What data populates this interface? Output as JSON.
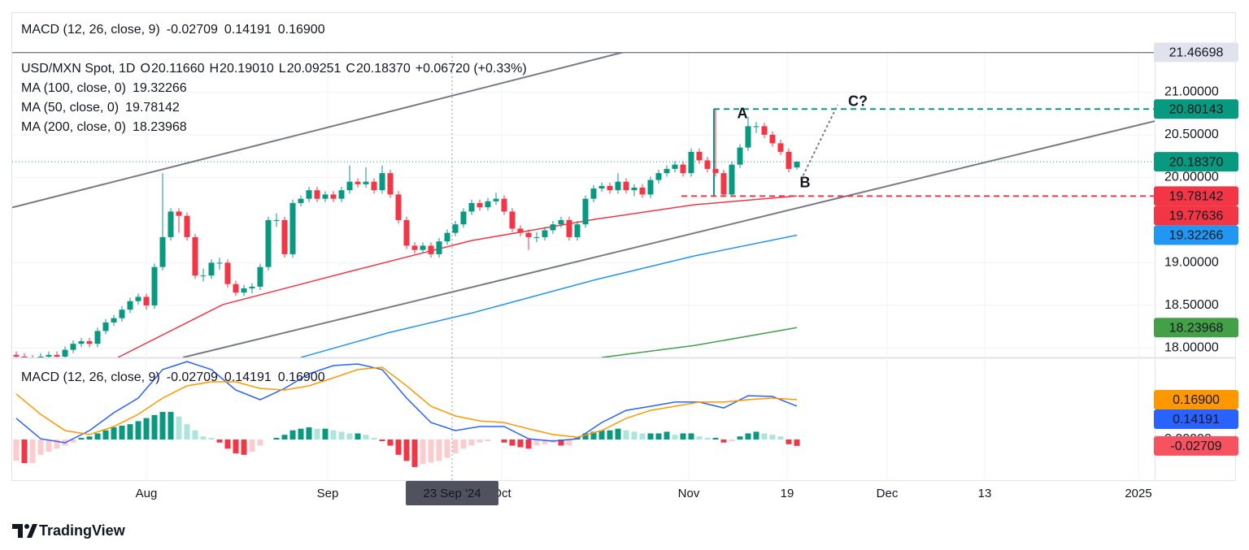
{
  "chart_data": [
    {
      "type": "candlestick",
      "title": "USD/MXN Spot, 1D",
      "ohlc_labels": [
        {
          "key": "O",
          "value": "20.11660"
        },
        {
          "key": "H",
          "value": "20.19010"
        },
        {
          "key": "L",
          "value": "20.09251"
        },
        {
          "key": "C",
          "value": "20.18370"
        }
      ],
      "change_label": "+0.06720 (+0.33%)",
      "xlim": [
        -0.5,
        140
      ],
      "xticks": [
        {
          "value": 16,
          "label": "Aug"
        },
        {
          "value": 38.3,
          "label": "Sep"
        },
        {
          "value": 59.7,
          "label": "Oct"
        },
        {
          "value": 82.7,
          "label": "Nov"
        },
        {
          "value": 94.8,
          "label": "19"
        },
        {
          "value": 107.1,
          "label": "Dec"
        },
        {
          "value": 119.1,
          "label": "13"
        },
        {
          "value": 138,
          "label": "2025"
        }
      ],
      "ylim": [
        17.89,
        21.47
      ],
      "yticks": [
        {
          "value": 18,
          "label": "18.00000"
        },
        {
          "value": 18.5,
          "label": "18.50000"
        },
        {
          "value": 19,
          "label": "19.00000"
        },
        {
          "value": 20,
          "label": "20.00000"
        },
        {
          "value": 20.5,
          "label": "20.50000"
        },
        {
          "value": 21,
          "label": "21.00000"
        }
      ],
      "grid": true,
      "up_color": "#089981",
      "down_color": "#f23645",
      "ohlc": [
        [
          17.92,
          17.96,
          17.86,
          17.9
        ],
        [
          17.9,
          17.94,
          17.84,
          17.88
        ],
        [
          17.88,
          17.92,
          17.83,
          17.87
        ],
        [
          17.87,
          17.94,
          17.83,
          17.9
        ],
        [
          17.9,
          17.96,
          17.86,
          17.92
        ],
        [
          17.92,
          17.96,
          17.86,
          17.9
        ],
        [
          17.9,
          18.02,
          17.86,
          17.98
        ],
        [
          17.98,
          18.09,
          17.94,
          18.05
        ],
        [
          18.05,
          18.12,
          18.01,
          18.08
        ],
        [
          18.08,
          18.12,
          18.01,
          18.05
        ],
        [
          18.05,
          18.24,
          18.01,
          18.2
        ],
        [
          18.2,
          18.34,
          18.16,
          18.3
        ],
        [
          18.3,
          18.39,
          18.26,
          18.35
        ],
        [
          18.35,
          18.49,
          18.31,
          18.45
        ],
        [
          18.45,
          18.59,
          18.41,
          18.55
        ],
        [
          18.55,
          18.64,
          18.51,
          18.6
        ],
        [
          18.6,
          18.64,
          18.45,
          18.5
        ],
        [
          18.5,
          18.99,
          18.46,
          18.95
        ],
        [
          18.95,
          20.05,
          18.91,
          19.3
        ],
        [
          19.3,
          19.64,
          19.26,
          19.6
        ],
        [
          19.6,
          19.64,
          19.35,
          19.55
        ],
        [
          19.55,
          19.59,
          19.26,
          19.3
        ],
        [
          19.3,
          19.34,
          18.81,
          18.85
        ],
        [
          18.85,
          18.93,
          18.78,
          18.85
        ],
        [
          18.85,
          19.04,
          18.81,
          19.0
        ],
        [
          19.0,
          19.06,
          18.92,
          19.0
        ],
        [
          19.0,
          19.04,
          18.71,
          18.75
        ],
        [
          18.75,
          18.79,
          18.61,
          18.65
        ],
        [
          18.65,
          18.74,
          18.61,
          18.7
        ],
        [
          18.7,
          18.76,
          18.64,
          18.72
        ],
        [
          18.72,
          18.99,
          18.68,
          18.95
        ],
        [
          18.95,
          19.54,
          18.91,
          19.5
        ],
        [
          19.5,
          19.58,
          19.42,
          19.5
        ],
        [
          19.5,
          19.54,
          19.06,
          19.1
        ],
        [
          19.1,
          19.74,
          19.06,
          19.7
        ],
        [
          19.7,
          19.79,
          19.66,
          19.75
        ],
        [
          19.75,
          19.89,
          19.71,
          19.85
        ],
        [
          19.85,
          19.89,
          19.71,
          19.75
        ],
        [
          19.75,
          19.84,
          19.71,
          19.8
        ],
        [
          19.8,
          19.84,
          19.71,
          19.75
        ],
        [
          19.75,
          19.89,
          19.71,
          19.85
        ],
        [
          19.85,
          20.14,
          19.81,
          19.95
        ],
        [
          19.95,
          19.99,
          19.88,
          19.92
        ],
        [
          19.92,
          20.12,
          19.88,
          19.95
        ],
        [
          19.95,
          19.99,
          19.81,
          19.85
        ],
        [
          19.85,
          20.14,
          19.81,
          20.05
        ],
        [
          20.05,
          20.09,
          19.76,
          19.8
        ],
        [
          19.8,
          19.84,
          19.46,
          19.5
        ],
        [
          19.5,
          19.54,
          19.16,
          19.2
        ],
        [
          19.2,
          19.24,
          19.11,
          19.15
        ],
        [
          19.15,
          19.24,
          19.11,
          19.2
        ],
        [
          19.2,
          19.24,
          19.06,
          19.1
        ],
        [
          19.1,
          19.29,
          19.06,
          19.25
        ],
        [
          19.25,
          19.39,
          19.21,
          19.35
        ],
        [
          19.35,
          19.49,
          19.31,
          19.45
        ],
        [
          19.45,
          19.64,
          19.41,
          19.6
        ],
        [
          19.6,
          19.74,
          19.56,
          19.7
        ],
        [
          19.7,
          19.74,
          19.61,
          19.65
        ],
        [
          19.65,
          19.76,
          19.61,
          19.72
        ],
        [
          19.72,
          19.82,
          19.68,
          19.75
        ],
        [
          19.75,
          19.79,
          19.56,
          19.6
        ],
        [
          19.6,
          19.64,
          19.36,
          19.4
        ],
        [
          19.4,
          19.44,
          19.31,
          19.35
        ],
        [
          19.35,
          19.39,
          19.15,
          19.3
        ],
        [
          19.3,
          19.36,
          19.24,
          19.3
        ],
        [
          19.3,
          19.42,
          19.26,
          19.38
        ],
        [
          19.38,
          19.49,
          19.34,
          19.45
        ],
        [
          19.45,
          19.54,
          19.41,
          19.5
        ],
        [
          19.5,
          19.54,
          19.26,
          19.3
        ],
        [
          19.3,
          19.49,
          19.26,
          19.45
        ],
        [
          19.45,
          19.79,
          19.41,
          19.75
        ],
        [
          19.75,
          19.91,
          19.71,
          19.87
        ],
        [
          19.87,
          19.94,
          19.83,
          19.9
        ],
        [
          19.9,
          19.94,
          19.81,
          19.85
        ],
        [
          19.85,
          20.05,
          19.81,
          19.95
        ],
        [
          19.95,
          19.99,
          19.81,
          19.85
        ],
        [
          19.85,
          19.92,
          19.78,
          19.88
        ],
        [
          19.88,
          19.92,
          19.76,
          19.8
        ],
        [
          19.8,
          20.01,
          19.76,
          19.97
        ],
        [
          19.97,
          20.09,
          19.93,
          20.05
        ],
        [
          20.05,
          20.14,
          20.01,
          20.1
        ],
        [
          20.1,
          20.19,
          20.06,
          20.15
        ],
        [
          20.15,
          20.19,
          20.01,
          20.05
        ],
        [
          20.05,
          20.34,
          20.01,
          20.3
        ],
        [
          20.3,
          20.34,
          20.16,
          20.2
        ],
        [
          20.2,
          20.24,
          20.06,
          20.1
        ],
        [
          20.1,
          20.8,
          20.01,
          20.05
        ],
        [
          20.05,
          20.09,
          19.78,
          19.8
        ],
        [
          19.8,
          20.19,
          19.78,
          20.15
        ],
        [
          20.15,
          20.39,
          20.11,
          20.35
        ],
        [
          20.35,
          20.71,
          20.31,
          20.6
        ],
        [
          20.6,
          20.65,
          20.52,
          20.6
        ],
        [
          20.6,
          20.64,
          20.46,
          20.5
        ],
        [
          20.5,
          20.54,
          20.36,
          20.4
        ],
        [
          20.4,
          20.44,
          20.26,
          20.3
        ],
        [
          20.3,
          20.34,
          20.06,
          20.1
        ],
        [
          20.1166,
          20.1901,
          20.09251,
          20.1837
        ]
      ],
      "moving_averages": [
        {
          "name": "MA (100, close, 0)",
          "color": "#2196f3",
          "x": [
            35,
            45.8,
            56,
            71.2,
            83.4,
            96
          ],
          "values": [
            17.89,
            18.18,
            18.41,
            18.8,
            19.08,
            19.32266
          ]
        },
        {
          "name": "MA (50, close, 0)",
          "color": "#f23645",
          "x": [
            12.5,
            25.4,
            40.7,
            56,
            71.2,
            83.4,
            96
          ],
          "values": [
            17.89,
            18.51,
            18.89,
            19.26,
            19.51,
            19.68,
            19.78142
          ]
        },
        {
          "name": "MA (200, close, 0)",
          "color": "#43a047",
          "x": [
            72,
            83.4,
            96
          ],
          "values": [
            17.89,
            18.03,
            18.23968
          ]
        }
      ],
      "drawings": [
        {
          "x": [
            -0.5,
            140
          ],
          "y": [
            21.46698,
            21.46698
          ],
          "color": "#787b86",
          "style": "solid"
        },
        {
          "x": [
            -0.5,
            76
          ],
          "y": [
            19.647,
            21.5
          ],
          "color": "#787b86",
          "style": "solid"
        },
        {
          "x": [
            20.5,
            140
          ],
          "y": [
            17.89,
            20.66
          ],
          "color": "#787b86",
          "style": "solid"
        },
        {
          "x": [
            85.8,
            140
          ],
          "y": [
            20.80143,
            20.80143
          ],
          "color": "#089981",
          "style": "dashed"
        },
        {
          "x": [
            85.8,
            85.8
          ],
          "y": [
            19.78,
            20.80143
          ],
          "color": "#089981",
          "style": "solid"
        },
        {
          "x": [
            81.8,
            140
          ],
          "y": [
            19.78142,
            19.78142
          ],
          "color": "#f23645",
          "style": "dashed"
        },
        {
          "x": [
            96.5,
            101
          ],
          "y": [
            19.97,
            20.85
          ],
          "color": "#787b86",
          "style": "dotted"
        }
      ],
      "annotations": [
        {
          "text": "A",
          "x": 89.3,
          "y": 20.74
        },
        {
          "text": "B",
          "x": 97,
          "y": 19.93
        },
        {
          "text": "C?",
          "x": 103.5,
          "y": 20.88
        }
      ],
      "price_labels": [
        {
          "value": 21.46698,
          "label": "21.46698",
          "color": "#e0e3eb",
          "text_color": "#131722"
        },
        {
          "value": 20.80143,
          "label": "20.80143",
          "color": "#089981",
          "text_color": "#ffffff"
        },
        {
          "value": 20.1837,
          "label": "20.18370",
          "color": "#089981",
          "text_color": "#ffffff"
        },
        {
          "value": 19.78142,
          "label": "19.78142",
          "color": "#f23645",
          "text_color": "#ffffff"
        },
        {
          "value": 19.77636,
          "label": "19.77636",
          "color": "#f23645",
          "text_color": "#ffffff"
        },
        {
          "value": 19.32266,
          "label": "19.32266",
          "color": "#2196f3",
          "text_color": "#ffffff"
        },
        {
          "value": 18.23968,
          "label": "18.23968",
          "color": "#43a047",
          "text_color": "#ffffff"
        }
      ],
      "crosshair": {
        "value": 53.6,
        "label": "23 Sep '24"
      }
    },
    {
      "type": "macd",
      "title": "MACD (12, 26, close, 9)",
      "value_labels": [
        {
          "value": -0.02709,
          "label": "-0.02709",
          "color": "#f7525f"
        },
        {
          "value": 0.14191,
          "label": "0.14191",
          "color": "#2962ff"
        },
        {
          "value": 0.169,
          "label": "0.16900",
          "color": "#ff9800"
        }
      ],
      "ylim": [
        -0.176,
        0.345
      ],
      "yticks": [
        {
          "value": 0,
          "label": "0.00000"
        }
      ],
      "histogram": {
        "colors": [
          "#089981",
          "#ace5dc",
          "#f23645",
          "#fccbcd"
        ],
        "values": [
          -0.09,
          -0.1,
          -0.1,
          -0.065,
          -0.052,
          -0.039,
          -0.026,
          -0.013,
          0.007,
          0.013,
          0.026,
          0.039,
          0.052,
          0.059,
          0.065,
          0.078,
          0.091,
          0.104,
          0.117,
          0.117,
          0.098,
          0.065,
          0.039,
          0.013,
          0.007,
          -0.013,
          -0.039,
          -0.059,
          -0.065,
          -0.052,
          -0.026,
          0,
          0.007,
          0.02,
          0.039,
          0.046,
          0.052,
          0.046,
          0.046,
          0.039,
          0.033,
          0.026,
          0.026,
          0.02,
          0.007,
          -0.007,
          -0.026,
          -0.065,
          -0.091,
          -0.117,
          -0.104,
          -0.098,
          -0.091,
          -0.078,
          -0.059,
          -0.039,
          -0.026,
          -0.013,
          -0.007,
          0,
          -0.013,
          -0.026,
          -0.033,
          -0.039,
          -0.026,
          -0.02,
          -0.013,
          -0.026,
          -0.026,
          0.007,
          0.026,
          0.033,
          0.039,
          0.039,
          0.046,
          0.039,
          0.033,
          0.026,
          0.026,
          0.026,
          0.033,
          0.02,
          0.026,
          0.026,
          0.013,
          0.007,
          0.007,
          -0.013,
          -0.007,
          0.013,
          0.026,
          0.033,
          0.026,
          0.02,
          0.013,
          -0.02,
          -0.02709
        ]
      },
      "series": [
        {
          "color": "#2962ff",
          "x": [
            0,
            3,
            6,
            9,
            12,
            15,
            18,
            21,
            24,
            27,
            30,
            33,
            36,
            39,
            42,
            45,
            48,
            51,
            54,
            57,
            60,
            63,
            66,
            69,
            72,
            75,
            78,
            81,
            84,
            87,
            90,
            93,
            96
          ],
          "values": [
            0.09,
            0.003,
            -0.014,
            0.038,
            0.114,
            0.176,
            0.297,
            0.331,
            0.297,
            0.21,
            0.169,
            0.217,
            0.279,
            0.314,
            0.321,
            0.297,
            0.176,
            0.072,
            0.038,
            0.055,
            0.055,
            0.003,
            -0.007,
            0.003,
            0.072,
            0.124,
            0.141,
            0.159,
            0.159,
            0.134,
            0.186,
            0.183,
            0.14191
          ]
        },
        {
          "color": "#ff9800",
          "x": [
            0,
            3,
            6,
            9,
            12,
            15,
            18,
            21,
            24,
            27,
            30,
            33,
            36,
            39,
            42,
            45,
            48,
            51,
            54,
            57,
            60,
            63,
            66,
            69,
            72,
            75,
            78,
            81,
            84,
            87,
            90,
            93,
            96
          ],
          "values": [
            0.193,
            0.107,
            0.038,
            0.021,
            0.055,
            0.107,
            0.176,
            0.228,
            0.245,
            0.245,
            0.217,
            0.21,
            0.228,
            0.262,
            0.297,
            0.307,
            0.228,
            0.141,
            0.1,
            0.079,
            0.072,
            0.045,
            0.021,
            0.01,
            0.038,
            0.09,
            0.124,
            0.141,
            0.159,
            0.159,
            0.169,
            0.176,
            0.169
          ]
        }
      ]
    }
  ],
  "footer": "TradingView"
}
